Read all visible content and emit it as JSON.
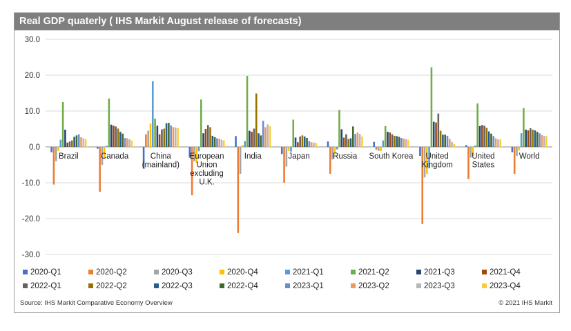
{
  "title": "Real GDP quaterly ( IHS Markit August release of forecasts)",
  "source": "Source: IHS Markit Comparative Economy Overview",
  "copyright": "© 2021 IHS Markit",
  "chart_data": {
    "type": "bar",
    "title": "Real GDP quaterly ( IHS Markit August release of forecasts)",
    "xlabel": "",
    "ylabel": "",
    "ylim": [
      -30,
      30
    ],
    "yticks": [
      30,
      20,
      10,
      0,
      -10,
      -20,
      -30
    ],
    "ytick_labels": [
      "30.0",
      "20.0",
      "10.0",
      "0.0",
      "-10.0",
      "-20.0",
      "-30.0"
    ],
    "grid": true,
    "legend": "bottom",
    "categories": [
      "Brazil",
      "Canada",
      "China (mainland)",
      "European Union excluding U.K.",
      "India",
      "Japan",
      "Russia",
      "South Korea",
      "United Kingdom",
      "United States",
      "World"
    ],
    "category_label_lines": [
      [
        "Brazil"
      ],
      [
        "Canada"
      ],
      [
        "China",
        "(mainland)"
      ],
      [
        "European",
        "Union",
        "excluding",
        "U.K."
      ],
      [
        "India"
      ],
      [
        "Japan"
      ],
      [
        "Russia"
      ],
      [
        "South Korea"
      ],
      [
        "United",
        "Kingdom"
      ],
      [
        "United",
        "States"
      ],
      [
        "World"
      ]
    ],
    "series": [
      {
        "name": "2020-Q1",
        "color": "#4472c4",
        "values": [
          -1.5,
          -0.5,
          -6.0,
          -3.0,
          3.0,
          -2.0,
          1.5,
          1.4,
          -2.5,
          0.5,
          -1.5
        ]
      },
      {
        "name": "2020-Q2",
        "color": "#ed7d31",
        "values": [
          -10.5,
          -12.5,
          3.5,
          -13.5,
          -24.0,
          -10.0,
          -7.5,
          -0.8,
          -21.5,
          -9.0,
          -7.5
        ]
      },
      {
        "name": "2020-Q3",
        "color": "#a5a5a5",
        "values": [
          -4.0,
          -5.0,
          4.5,
          -4.0,
          -7.5,
          -5.5,
          -3.5,
          -1.1,
          -8.5,
          -3.0,
          -2.5
        ]
      },
      {
        "name": "2020-Q4",
        "color": "#ffc000",
        "values": [
          -1.1,
          -3.2,
          6.5,
          -4.5,
          0.5,
          -1.1,
          -1.8,
          -1.2,
          -7.5,
          -2.5,
          -1.0
        ]
      },
      {
        "name": "2021-Q1",
        "color": "#5b9bd5",
        "values": [
          2.0,
          0.3,
          18.3,
          -1.2,
          1.6,
          -1.3,
          -0.7,
          1.8,
          -6.0,
          0.4,
          3.8
        ]
      },
      {
        "name": "2021-Q2",
        "color": "#70ad47",
        "values": [
          12.5,
          13.5,
          7.9,
          13.2,
          19.8,
          7.6,
          10.3,
          5.8,
          22.2,
          12.1,
          10.8
        ]
      },
      {
        "name": "2021-Q3",
        "color": "#264478",
        "values": [
          4.8,
          6.2,
          5.9,
          3.8,
          4.5,
          2.6,
          4.9,
          4.2,
          7.0,
          5.8,
          4.8
        ]
      },
      {
        "name": "2021-Q4",
        "color": "#9e480e",
        "values": [
          1.2,
          5.9,
          3.5,
          5.0,
          4.2,
          1.3,
          2.6,
          4.0,
          6.8,
          6.1,
          4.6
        ]
      },
      {
        "name": "2022-Q1",
        "color": "#636363",
        "values": [
          1.5,
          5.7,
          4.9,
          6.1,
          5.1,
          2.9,
          3.5,
          3.5,
          9.3,
          5.9,
          5.2
        ]
      },
      {
        "name": "2022-Q2",
        "color": "#997300",
        "values": [
          1.8,
          5.1,
          5.1,
          5.5,
          14.9,
          3.2,
          2.2,
          3.1,
          4.5,
          5.3,
          4.8
        ]
      },
      {
        "name": "2022-Q3",
        "color": "#255e91",
        "values": [
          2.8,
          4.2,
          6.6,
          3.1,
          3.8,
          2.9,
          2.4,
          3.0,
          3.4,
          4.3,
          4.6
        ]
      },
      {
        "name": "2022-Q4",
        "color": "#43682b",
        "values": [
          3.2,
          3.7,
          6.7,
          2.7,
          3.2,
          2.5,
          5.7,
          2.8,
          3.4,
          3.7,
          4.2
        ]
      },
      {
        "name": "2023-Q1",
        "color": "#698ed0",
        "values": [
          3.5,
          2.5,
          6.0,
          2.4,
          7.3,
          1.6,
          3.6,
          2.5,
          3.1,
          3.0,
          3.8
        ]
      },
      {
        "name": "2023-Q2",
        "color": "#f1975a",
        "values": [
          2.7,
          2.4,
          5.5,
          2.3,
          5.5,
          1.3,
          4.0,
          2.3,
          2.2,
          2.4,
          3.3
        ]
      },
      {
        "name": "2023-Q3",
        "color": "#b7b7b7",
        "values": [
          2.4,
          2.1,
          5.4,
          2.0,
          6.3,
          1.2,
          3.6,
          2.2,
          1.4,
          2.1,
          3.1
        ]
      },
      {
        "name": "2023-Q4",
        "color": "#ffcd33",
        "values": [
          2.1,
          1.8,
          5.2,
          1.8,
          5.8,
          1.1,
          2.9,
          2.0,
          0.8,
          2.1,
          3.0
        ]
      }
    ]
  }
}
